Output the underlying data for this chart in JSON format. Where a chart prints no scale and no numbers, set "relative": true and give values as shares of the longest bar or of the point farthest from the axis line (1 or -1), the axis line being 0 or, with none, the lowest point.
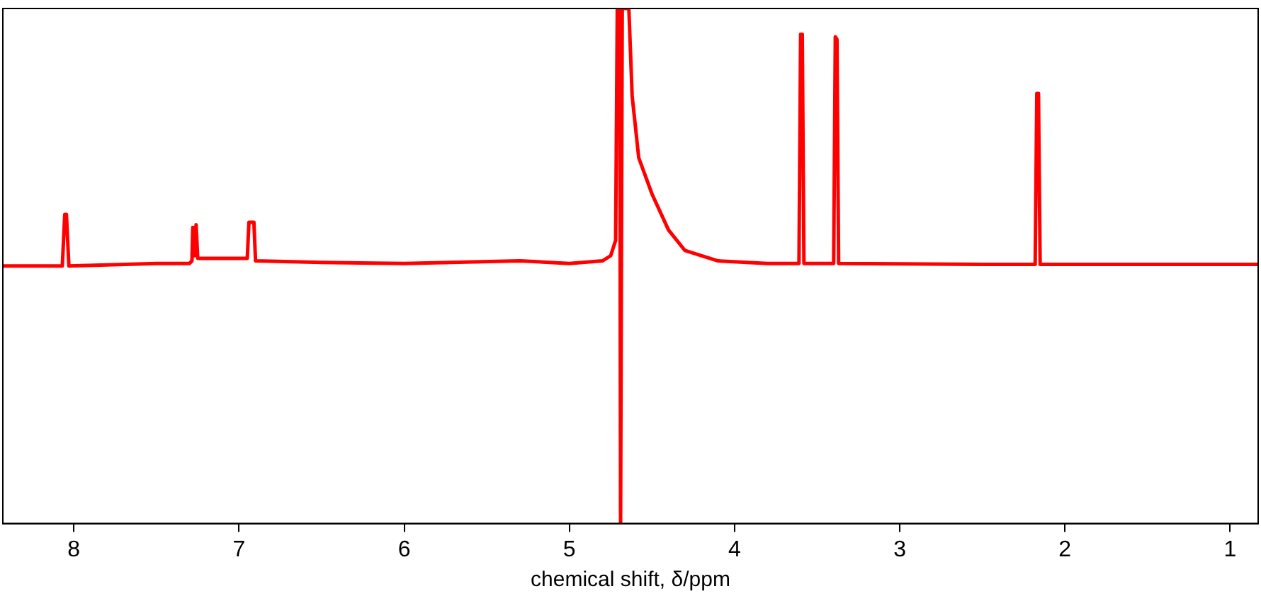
{
  "chart_data": {
    "type": "line",
    "xlabel": "chemical shift, δ/ppm",
    "relative": true,
    "tick_labels": "x",
    "xlim": [
      8.43,
      0.83
    ],
    "xticks": [
      8,
      7,
      6,
      5,
      4,
      3,
      2,
      1
    ],
    "grid": false,
    "legend": false,
    "marker": "none",
    "line_style": "solid",
    "series": [
      {
        "color": "#ff0000",
        "x": [
          8.43,
          8.07,
          8.055,
          8.045,
          8.03,
          7.5,
          7.3,
          7.285,
          7.28,
          7.27,
          7.26,
          7.25,
          7.2,
          6.95,
          6.94,
          6.91,
          6.9,
          6.5,
          6,
          5.3,
          5,
          4.8,
          4.75,
          4.72,
          4.71,
          4.695,
          4.69,
          4.685,
          4.68,
          4.64,
          4.62,
          4.58,
          4.5,
          4.4,
          4.3,
          4.1,
          3.8,
          3.61,
          3.6,
          3.59,
          3.58,
          3.4,
          3.39,
          3.38,
          3.37,
          2.5,
          2.18,
          2.17,
          2.16,
          2.15,
          1.5,
          0.83
        ],
        "values": [
          0.5,
          0.5,
          0.6,
          0.6,
          0.5,
          0.505,
          0.505,
          0.51,
          0.575,
          0.52,
          0.58,
          0.515,
          0.515,
          0.515,
          0.585,
          0.585,
          0.51,
          0.507,
          0.505,
          0.51,
          0.505,
          0.51,
          0.52,
          0.55,
          1,
          1,
          0,
          0,
          1,
          1,
          0.83,
          0.71,
          0.64,
          0.57,
          0.53,
          0.51,
          0.505,
          0.505,
          0.95,
          0.95,
          0.505,
          0.505,
          0.945,
          0.94,
          0.505,
          0.503,
          0.503,
          0.835,
          0.835,
          0.503,
          0.503,
          0.503
        ]
      }
    ]
  }
}
